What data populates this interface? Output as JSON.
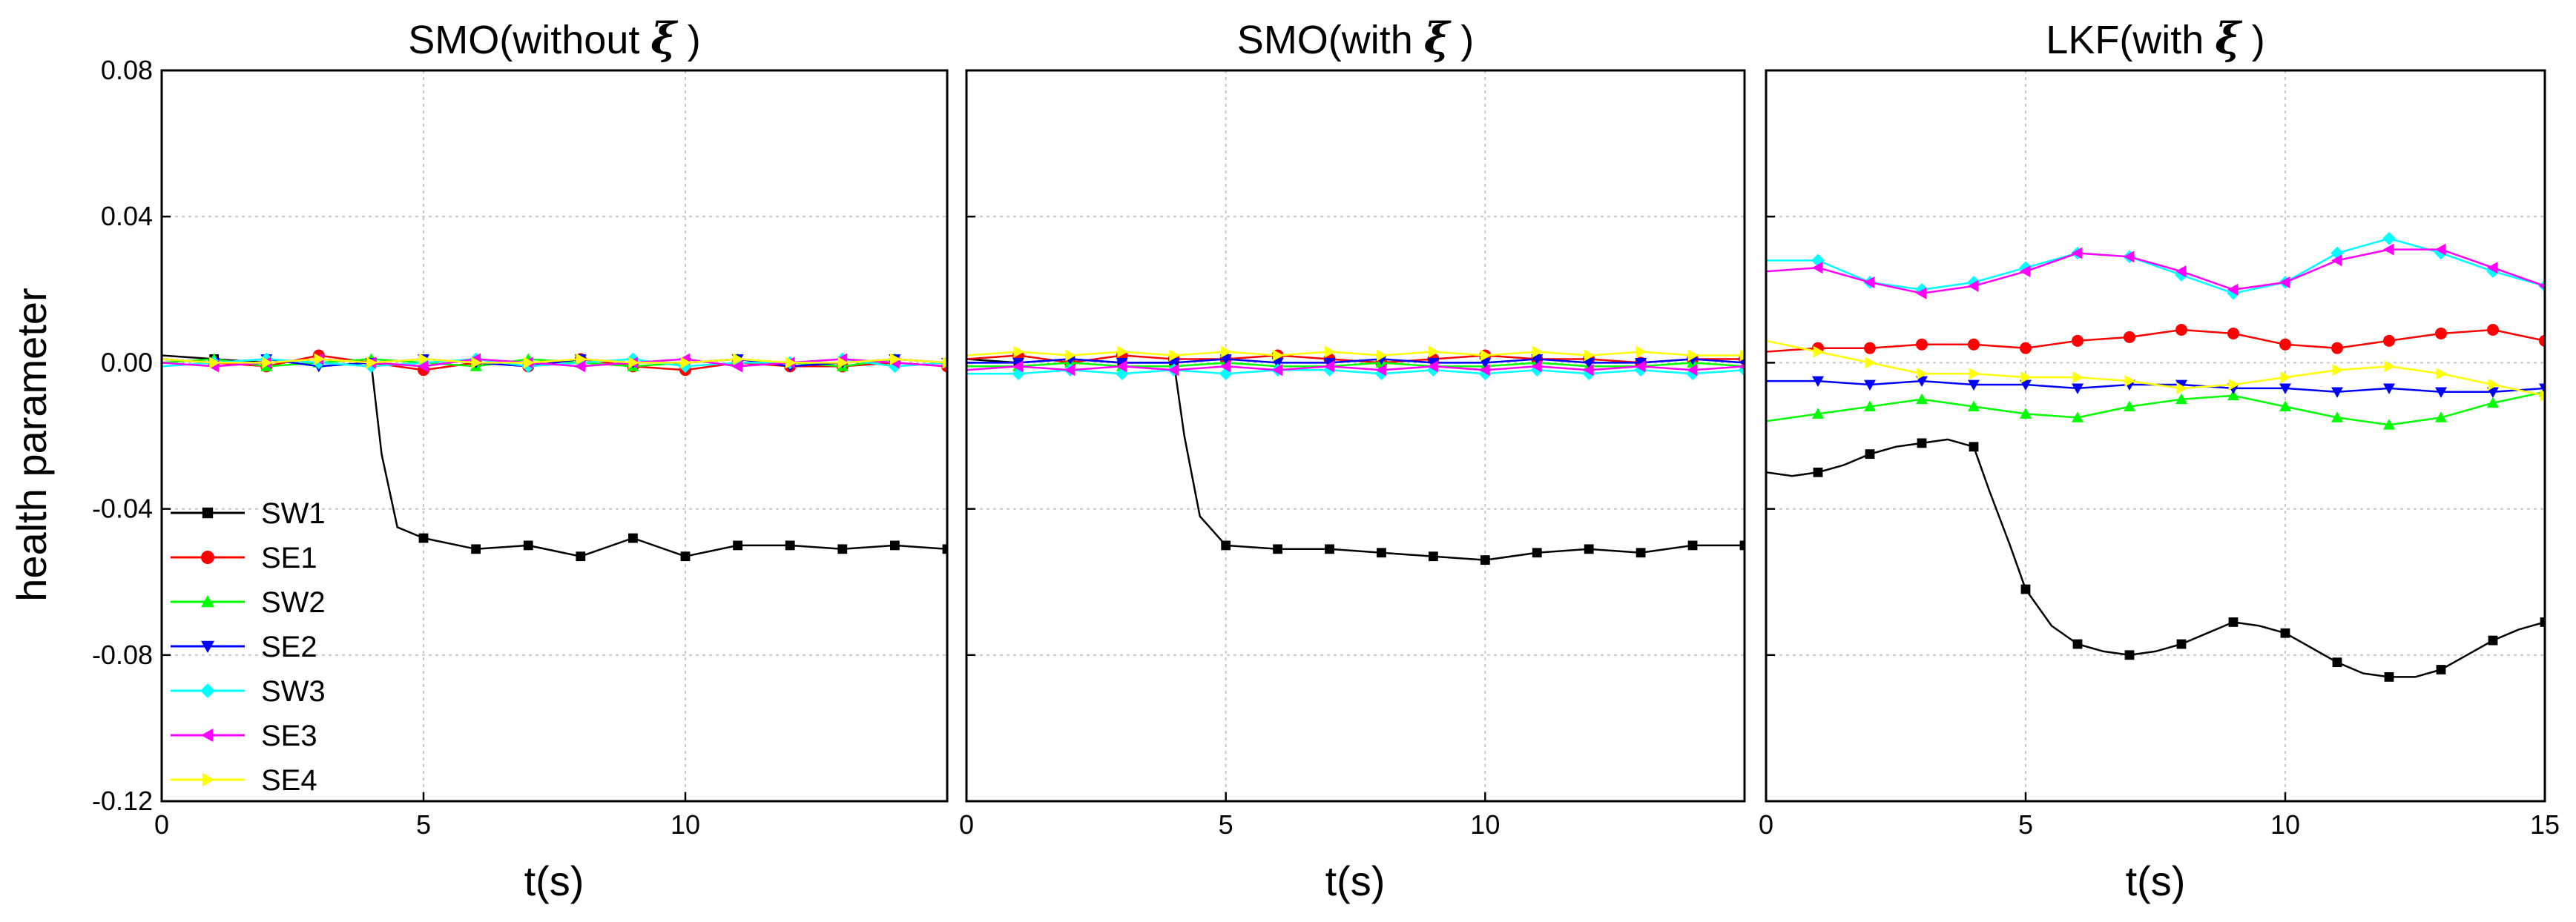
{
  "figure": {
    "ylabel": "health parameter",
    "xlabel": "t(s)",
    "legend": [
      {
        "name": "SW1",
        "color": "#000000",
        "marker": "square"
      },
      {
        "name": "SE1",
        "color": "#ff0000",
        "marker": "circle"
      },
      {
        "name": "SW2",
        "color": "#00ff00",
        "marker": "triangle-up"
      },
      {
        "name": "SE2",
        "color": "#0000ff",
        "marker": "triangle-down"
      },
      {
        "name": "SW3",
        "color": "#00ffff",
        "marker": "diamond"
      },
      {
        "name": "SE3",
        "color": "#ff00ff",
        "marker": "triangle-left"
      },
      {
        "name": "SE4",
        "color": "#ffff00",
        "marker": "triangle-right"
      }
    ]
  },
  "chart_data": [
    {
      "type": "line",
      "title": "SMO(without ",
      "title_symbol": "ξ",
      "title_suffix": " )",
      "xlabel": "t(s)",
      "ylabel": "health parameter",
      "xlim": [
        0,
        15
      ],
      "ylim": [
        -0.12,
        0.08
      ],
      "xticks": [
        0,
        5,
        10
      ],
      "xtick_labels": [
        "0",
        "5",
        "10"
      ],
      "yticks": [
        -0.12,
        -0.08,
        -0.04,
        0.0,
        0.04,
        0.08
      ],
      "ytick_labels": [
        "-0.12",
        "-0.08",
        "-0.04",
        "0.00",
        "0.04",
        "0.08"
      ],
      "grid": true,
      "series": [
        {
          "name": "SW1",
          "x": [
            0,
            1,
            2,
            3,
            4,
            4.2,
            4.5,
            5,
            6,
            7,
            8,
            9,
            10,
            11,
            12,
            13,
            14,
            15
          ],
          "y": [
            0.002,
            0.001,
            0.0,
            0.001,
            0.0,
            -0.025,
            -0.045,
            -0.048,
            -0.051,
            -0.05,
            -0.053,
            -0.048,
            -0.053,
            -0.05,
            -0.05,
            -0.051,
            -0.05,
            -0.051
          ]
        },
        {
          "name": "SE1",
          "x": [
            0,
            1,
            2,
            3,
            4,
            5,
            6,
            7,
            8,
            9,
            10,
            11,
            12,
            13,
            14,
            15
          ],
          "y": [
            0.001,
            0.0,
            -0.001,
            0.002,
            0.0,
            -0.002,
            0.0,
            -0.001,
            0.001,
            -0.001,
            -0.002,
            0.0,
            -0.001,
            -0.001,
            0.0,
            -0.001
          ]
        },
        {
          "name": "SW2",
          "x": [
            0,
            1,
            2,
            3,
            4,
            5,
            6,
            7,
            8,
            9,
            10,
            11,
            12,
            13,
            14,
            15
          ],
          "y": [
            0.0,
            0.001,
            -0.001,
            0.0,
            0.001,
            0.0,
            -0.001,
            0.001,
            0.0,
            -0.001,
            0.0,
            0.001,
            0.0,
            -0.001,
            0.001,
            0.0
          ]
        },
        {
          "name": "SE2",
          "x": [
            0,
            1,
            2,
            3,
            4,
            5,
            6,
            7,
            8,
            9,
            10,
            11,
            12,
            13,
            14,
            15
          ],
          "y": [
            0.001,
            0.0,
            0.001,
            -0.001,
            0.0,
            0.001,
            0.0,
            -0.001,
            0.001,
            0.0,
            0.0,
            0.001,
            -0.001,
            0.0,
            0.001,
            0.0
          ]
        },
        {
          "name": "SW3",
          "x": [
            0,
            1,
            2,
            3,
            4,
            5,
            6,
            7,
            8,
            9,
            10,
            11,
            12,
            13,
            14,
            15
          ],
          "y": [
            -0.001,
            0.0,
            0.001,
            0.0,
            -0.001,
            0.0,
            0.001,
            -0.001,
            0.0,
            0.001,
            -0.001,
            0.0,
            0.0,
            0.001,
            -0.001,
            0.0
          ]
        },
        {
          "name": "SE3",
          "x": [
            0,
            1,
            2,
            3,
            4,
            5,
            6,
            7,
            8,
            9,
            10,
            11,
            12,
            13,
            14,
            15
          ],
          "y": [
            0.0,
            -0.001,
            0.0,
            0.001,
            0.0,
            -0.001,
            0.001,
            0.0,
            -0.001,
            0.0,
            0.001,
            -0.001,
            0.0,
            0.001,
            0.0,
            -0.001
          ]
        },
        {
          "name": "SE4",
          "x": [
            0,
            1,
            2,
            3,
            4,
            5,
            6,
            7,
            8,
            9,
            10,
            11,
            12,
            13,
            14,
            15
          ],
          "y": [
            0.001,
            0.0,
            0.0,
            0.001,
            0.0,
            0.001,
            0.0,
            0.0,
            0.001,
            0.0,
            0.0,
            0.001,
            0.0,
            0.0,
            0.001,
            0.0
          ]
        }
      ]
    },
    {
      "type": "line",
      "title": "SMO(with ",
      "title_symbol": "ξ",
      "title_suffix": " )",
      "xlabel": "t(s)",
      "xlim": [
        0,
        15
      ],
      "ylim": [
        -0.12,
        0.08
      ],
      "xticks": [
        0,
        5,
        10
      ],
      "xtick_labels": [
        "0",
        "5",
        "10"
      ],
      "grid": true,
      "series": [
        {
          "name": "SW1",
          "x": [
            0,
            1,
            2,
            3,
            4,
            4.2,
            4.5,
            5,
            6,
            7,
            8,
            9,
            10,
            11,
            12,
            13,
            14,
            15
          ],
          "y": [
            0.001,
            0.0,
            0.001,
            0.0,
            0.0,
            -0.02,
            -0.042,
            -0.05,
            -0.051,
            -0.051,
            -0.052,
            -0.053,
            -0.054,
            -0.052,
            -0.051,
            -0.052,
            -0.05,
            -0.05
          ]
        },
        {
          "name": "SE1",
          "x": [
            0,
            1,
            2,
            3,
            4,
            5,
            6,
            7,
            8,
            9,
            10,
            11,
            12,
            13,
            14,
            15
          ],
          "y": [
            0.001,
            0.002,
            0.0,
            0.002,
            0.001,
            0.001,
            0.002,
            0.001,
            0.0,
            0.001,
            0.002,
            0.001,
            0.001,
            0.0,
            0.001,
            0.001
          ]
        },
        {
          "name": "SW2",
          "x": [
            0,
            1,
            2,
            3,
            4,
            5,
            6,
            7,
            8,
            9,
            10,
            11,
            12,
            13,
            14,
            15
          ],
          "y": [
            -0.001,
            -0.001,
            0.0,
            -0.001,
            -0.001,
            0.0,
            -0.001,
            -0.001,
            0.0,
            -0.001,
            -0.001,
            0.0,
            -0.001,
            -0.001,
            0.0,
            -0.001
          ]
        },
        {
          "name": "SE2",
          "x": [
            0,
            1,
            2,
            3,
            4,
            5,
            6,
            7,
            8,
            9,
            10,
            11,
            12,
            13,
            14,
            15
          ],
          "y": [
            0.0,
            0.0,
            0.001,
            0.0,
            0.0,
            0.001,
            0.0,
            0.0,
            0.001,
            0.0,
            0.0,
            0.001,
            0.0,
            0.0,
            0.001,
            0.0
          ]
        },
        {
          "name": "SW3",
          "x": [
            0,
            1,
            2,
            3,
            4,
            5,
            6,
            7,
            8,
            9,
            10,
            11,
            12,
            13,
            14,
            15
          ],
          "y": [
            -0.003,
            -0.003,
            -0.002,
            -0.003,
            -0.002,
            -0.003,
            -0.002,
            -0.002,
            -0.003,
            -0.002,
            -0.003,
            -0.002,
            -0.003,
            -0.002,
            -0.003,
            -0.002
          ]
        },
        {
          "name": "SE3",
          "x": [
            0,
            1,
            2,
            3,
            4,
            5,
            6,
            7,
            8,
            9,
            10,
            11,
            12,
            13,
            14,
            15
          ],
          "y": [
            -0.002,
            -0.001,
            -0.002,
            -0.001,
            -0.002,
            -0.001,
            -0.002,
            -0.001,
            -0.002,
            -0.001,
            -0.002,
            -0.001,
            -0.002,
            -0.001,
            -0.002,
            -0.001
          ]
        },
        {
          "name": "SE4",
          "x": [
            0,
            1,
            2,
            3,
            4,
            5,
            6,
            7,
            8,
            9,
            10,
            11,
            12,
            13,
            14,
            15
          ],
          "y": [
            0.002,
            0.003,
            0.002,
            0.003,
            0.002,
            0.003,
            0.002,
            0.003,
            0.002,
            0.003,
            0.002,
            0.003,
            0.002,
            0.003,
            0.002,
            0.002
          ]
        }
      ]
    },
    {
      "type": "line",
      "title": "LKF(with ",
      "title_symbol": "ξ",
      "title_suffix": "  )",
      "xlabel": "t(s)",
      "xlim": [
        0,
        15
      ],
      "ylim": [
        -0.12,
        0.08
      ],
      "xticks": [
        0,
        5,
        10,
        15
      ],
      "xtick_labels": [
        "0",
        "5",
        "10",
        "15"
      ],
      "grid": true,
      "series": [
        {
          "name": "SW1",
          "x": [
            0,
            0.5,
            1,
            1.5,
            2,
            2.5,
            3,
            3.5,
            4,
            4.3,
            4.7,
            5,
            5.5,
            6,
            6.5,
            7,
            7.5,
            8,
            8.5,
            9,
            9.5,
            10,
            10.5,
            11,
            11.5,
            12,
            12.5,
            13,
            13.5,
            14,
            14.5,
            15
          ],
          "y": [
            -0.03,
            -0.031,
            -0.03,
            -0.028,
            -0.025,
            -0.023,
            -0.022,
            -0.021,
            -0.023,
            -0.035,
            -0.05,
            -0.062,
            -0.072,
            -0.077,
            -0.079,
            -0.08,
            -0.079,
            -0.077,
            -0.074,
            -0.071,
            -0.072,
            -0.074,
            -0.078,
            -0.082,
            -0.085,
            -0.086,
            -0.086,
            -0.084,
            -0.08,
            -0.076,
            -0.073,
            -0.071
          ]
        },
        {
          "name": "SE1",
          "x": [
            0,
            1,
            2,
            3,
            4,
            5,
            6,
            7,
            8,
            9,
            10,
            11,
            12,
            13,
            14,
            15
          ],
          "y": [
            0.003,
            0.004,
            0.004,
            0.005,
            0.005,
            0.004,
            0.006,
            0.007,
            0.009,
            0.008,
            0.005,
            0.004,
            0.006,
            0.008,
            0.009,
            0.006
          ]
        },
        {
          "name": "SW2",
          "x": [
            0,
            1,
            2,
            3,
            4,
            5,
            6,
            7,
            8,
            9,
            10,
            11,
            12,
            13,
            14,
            15
          ],
          "y": [
            -0.016,
            -0.014,
            -0.012,
            -0.01,
            -0.012,
            -0.014,
            -0.015,
            -0.012,
            -0.01,
            -0.009,
            -0.012,
            -0.015,
            -0.017,
            -0.015,
            -0.011,
            -0.008
          ]
        },
        {
          "name": "SE2",
          "x": [
            0,
            1,
            2,
            3,
            4,
            5,
            6,
            7,
            8,
            9,
            10,
            11,
            12,
            13,
            14,
            15
          ],
          "y": [
            -0.005,
            -0.005,
            -0.006,
            -0.005,
            -0.006,
            -0.006,
            -0.007,
            -0.006,
            -0.006,
            -0.007,
            -0.007,
            -0.008,
            -0.007,
            -0.008,
            -0.008,
            -0.007
          ]
        },
        {
          "name": "SW3",
          "x": [
            0,
            1,
            2,
            3,
            4,
            5,
            6,
            7,
            8,
            9,
            10,
            11,
            12,
            13,
            14,
            15
          ],
          "y": [
            0.028,
            0.028,
            0.022,
            0.02,
            0.022,
            0.026,
            0.03,
            0.029,
            0.024,
            0.019,
            0.022,
            0.03,
            0.034,
            0.03,
            0.025,
            0.021
          ]
        },
        {
          "name": "SE3",
          "x": [
            0,
            1,
            2,
            3,
            4,
            5,
            6,
            7,
            8,
            9,
            10,
            11,
            12,
            13,
            14,
            15
          ],
          "y": [
            0.025,
            0.026,
            0.022,
            0.019,
            0.021,
            0.025,
            0.03,
            0.029,
            0.025,
            0.02,
            0.022,
            0.028,
            0.031,
            0.031,
            0.026,
            0.021
          ]
        },
        {
          "name": "SE4",
          "x": [
            0,
            1,
            2,
            3,
            4,
            5,
            6,
            7,
            8,
            9,
            10,
            11,
            12,
            13,
            14,
            15
          ],
          "y": [
            0.006,
            0.003,
            0.0,
            -0.003,
            -0.003,
            -0.004,
            -0.004,
            -0.005,
            -0.007,
            -0.006,
            -0.004,
            -0.002,
            -0.001,
            -0.003,
            -0.006,
            -0.009
          ]
        }
      ]
    }
  ]
}
